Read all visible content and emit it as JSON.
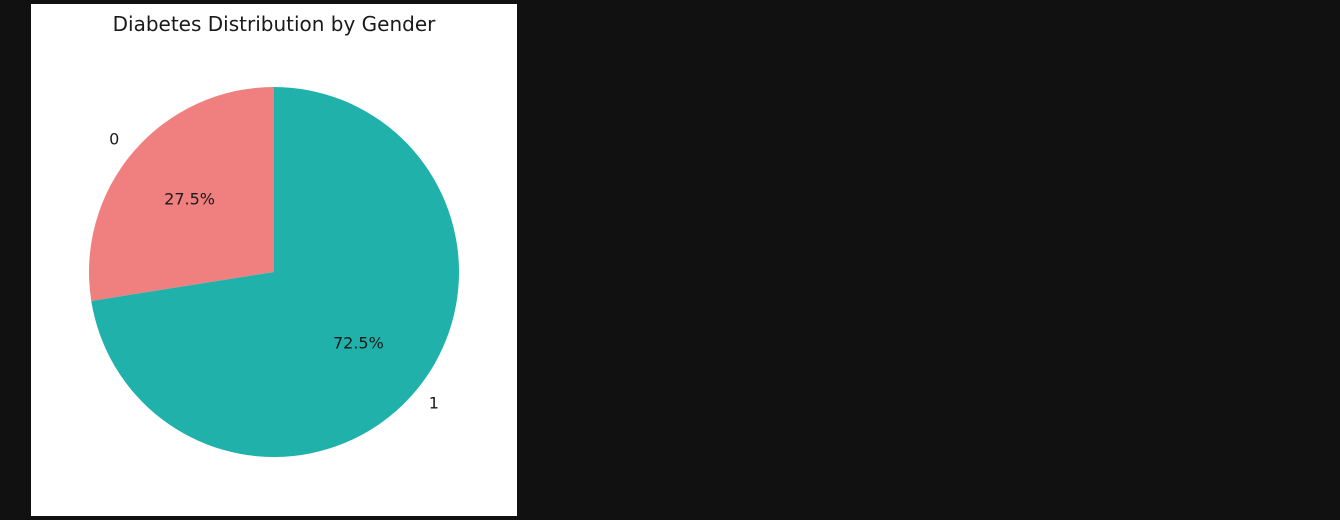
{
  "colors": {
    "page_background": "#111111",
    "card_background": "#ffffff"
  },
  "chart_data": {
    "type": "pie",
    "title": "Diabetes Distribution by Gender",
    "start_angle_deg": 90,
    "direction": "counterclockwise",
    "slices": [
      {
        "label": "0",
        "value": 27.5,
        "pct_label": "27.5%",
        "color": "#F08080"
      },
      {
        "label": "1",
        "value": 72.5,
        "pct_label": "72.5%",
        "color": "#20B2AA"
      }
    ]
  }
}
